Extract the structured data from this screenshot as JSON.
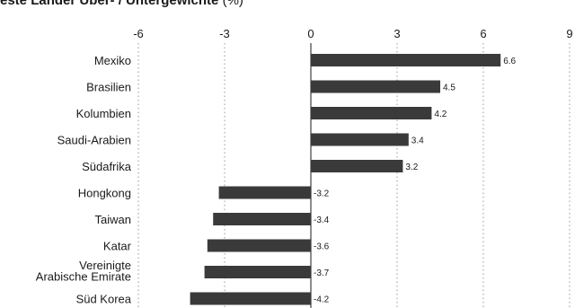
{
  "chart_data": {
    "type": "bar",
    "orientation": "horizontal",
    "title": "este Länder Über- / Untergewichte",
    "title_unit": "(%)",
    "categories": [
      "Mexiko",
      "Brasilien",
      "Kolumbien",
      "Saudi-Arabien",
      "Südafrika",
      "Hongkong",
      "Taiwan",
      "Katar",
      "Vereinigte Arabische Emirate",
      "Süd Korea"
    ],
    "category_lines": [
      [
        "Mexiko"
      ],
      [
        "Brasilien"
      ],
      [
        "Kolumbien"
      ],
      [
        "Saudi-Arabien"
      ],
      [
        "Südafrika"
      ],
      [
        "Hongkong"
      ],
      [
        "Taiwan"
      ],
      [
        "Katar"
      ],
      [
        "Vereinigte",
        "Arabische Emirate"
      ],
      [
        "Süd Korea"
      ]
    ],
    "values": [
      6.6,
      4.5,
      4.2,
      3.4,
      3.2,
      -3.2,
      -3.4,
      -3.6,
      -3.7,
      -4.2
    ],
    "value_labels": [
      "6.6",
      "4.5",
      "4.2",
      "3.4",
      "3.2",
      "-3.2",
      "-3.4",
      "-3.6",
      "-3.7",
      "-4.2"
    ],
    "xlim": [
      -6,
      9
    ],
    "xticks": [
      -6,
      -3,
      0,
      3,
      6,
      9
    ],
    "xtick_labels": [
      "-6",
      "-3",
      "0",
      "3",
      "6",
      "9"
    ],
    "axis_position": "top",
    "grid": "vertical-dotted",
    "bar_color": "#3a3a3a",
    "grid_color": "#9a9a9a",
    "zero_line_color": "#1a1a1a"
  }
}
